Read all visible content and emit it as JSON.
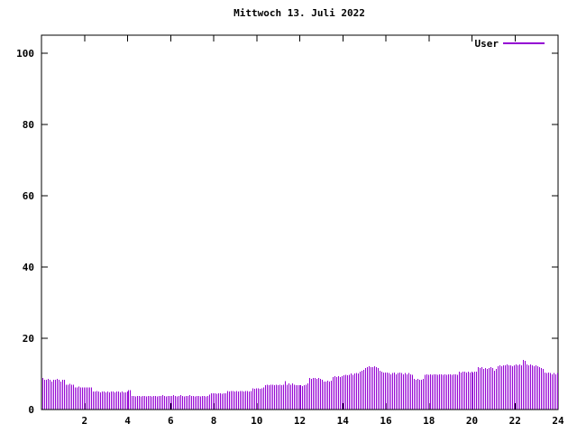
{
  "title": "Mittwoch 13. Juli 2022",
  "legend": {
    "label": "User"
  },
  "colors": {
    "series": "#9400d3",
    "axis": "#000000",
    "background": "#ffffff"
  },
  "chart_data": {
    "type": "bar",
    "title": "Mittwoch 13. Juli 2022",
    "xlabel": "",
    "ylabel": "",
    "xlim": [
      0,
      24
    ],
    "ylim": [
      0,
      105
    ],
    "x_ticks": [
      2,
      4,
      6,
      8,
      10,
      12,
      14,
      16,
      18,
      20,
      22,
      24
    ],
    "y_ticks": [
      0,
      20,
      40,
      60,
      80,
      100
    ],
    "grid": false,
    "legend_position": "top-right-inside",
    "x_unit": "hour-of-day",
    "sample_interval_minutes": 5,
    "series": [
      {
        "name": "User",
        "color": "#9400d3",
        "values": [
          8.8,
          8.3,
          8.3,
          8.6,
          8.3,
          7.8,
          8.3,
          8.3,
          8.6,
          8.3,
          7.8,
          8.3,
          8.3,
          6.9,
          6.9,
          7.2,
          6.9,
          6.9,
          6.2,
          6.2,
          6.5,
          6.2,
          6.2,
          6.2,
          6.2,
          6.2,
          6.2,
          6.2,
          5.0,
          5.0,
          5.2,
          5.0,
          4.8,
          5.0,
          5.0,
          4.8,
          5.0,
          4.8,
          5.0,
          5.0,
          4.8,
          5.0,
          5.0,
          4.8,
          5.0,
          4.8,
          4.8,
          5.0,
          5.5,
          5.5,
          3.8,
          3.8,
          3.7,
          3.8,
          3.8,
          3.7,
          3.8,
          3.8,
          3.7,
          3.8,
          3.8,
          3.7,
          3.8,
          3.8,
          3.7,
          3.8,
          3.8,
          4.0,
          3.8,
          3.7,
          3.8,
          3.8,
          3.8,
          4.0,
          3.8,
          3.7,
          3.8,
          4.0,
          3.8,
          3.7,
          3.8,
          3.8,
          4.0,
          3.8,
          3.8,
          3.7,
          3.8,
          3.8,
          3.7,
          3.8,
          3.8,
          3.7,
          3.8,
          4.2,
          4.6,
          4.6,
          4.6,
          4.4,
          4.6,
          4.6,
          4.4,
          4.6,
          4.6,
          5.2,
          5.0,
          5.2,
          5.2,
          5.0,
          5.2,
          5.0,
          5.2,
          5.2,
          5.0,
          5.2,
          5.2,
          5.0,
          5.2,
          6.0,
          5.8,
          6.0,
          6.0,
          5.8,
          6.0,
          6.2,
          6.8,
          7.0,
          6.8,
          7.0,
          7.0,
          6.8,
          7.0,
          6.8,
          7.0,
          6.8,
          7.0,
          8.0,
          7.0,
          7.3,
          7.0,
          7.3,
          7.0,
          6.8,
          6.8,
          6.8,
          6.8,
          6.6,
          6.8,
          7.0,
          7.3,
          8.8,
          8.6,
          8.8,
          8.8,
          8.6,
          8.8,
          8.6,
          8.4,
          7.9,
          7.9,
          8.1,
          7.9,
          8.1,
          9.1,
          9.3,
          9.1,
          9.3,
          9.1,
          9.3,
          9.6,
          9.8,
          9.6,
          9.8,
          10.1,
          9.8,
          10.1,
          10.3,
          10.1,
          10.6,
          10.9,
          11.1,
          11.7,
          11.9,
          12.1,
          11.9,
          11.9,
          12.1,
          11.9,
          11.7,
          10.9,
          10.6,
          10.4,
          10.4,
          10.4,
          10.2,
          9.9,
          10.2,
          10.4,
          9.9,
          10.2,
          10.4,
          10.2,
          9.9,
          10.2,
          9.9,
          10.2,
          9.9,
          9.7,
          8.6,
          8.4,
          8.6,
          8.4,
          8.4,
          8.6,
          9.7,
          9.9,
          9.7,
          9.9,
          9.7,
          9.9,
          9.9,
          9.7,
          9.9,
          9.9,
          9.7,
          9.9,
          9.7,
          9.9,
          9.9,
          9.7,
          9.9,
          9.9,
          9.7,
          10.6,
          10.4,
          10.6,
          10.6,
          10.4,
          10.6,
          10.4,
          10.6,
          10.4,
          10.6,
          10.6,
          11.9,
          11.7,
          11.9,
          11.4,
          11.7,
          11.4,
          11.7,
          11.9,
          11.7,
          10.9,
          11.4,
          12.2,
          12.4,
          12.2,
          12.4,
          12.4,
          12.7,
          12.4,
          12.4,
          12.2,
          12.4,
          12.7,
          12.4,
          12.7,
          12.4,
          13.9,
          13.7,
          12.7,
          12.4,
          12.7,
          12.4,
          12.2,
          12.4,
          12.2,
          11.9,
          11.7,
          11.4,
          10.4,
          10.2,
          10.4,
          10.2,
          9.9,
          10.2,
          9.9,
          10.2
        ]
      }
    ]
  }
}
